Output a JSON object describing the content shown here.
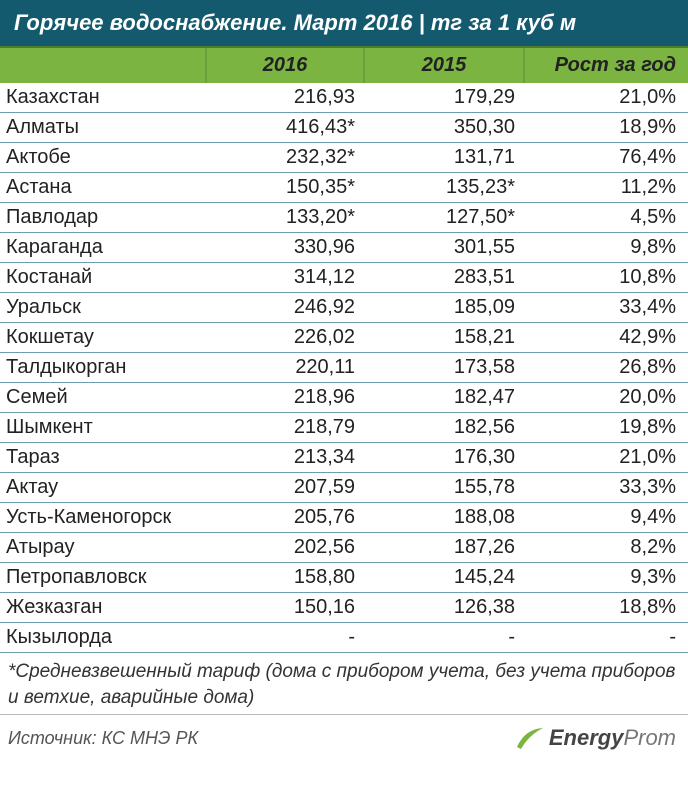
{
  "title": "Горячее водоснабжение. Март 2016 | тг за 1 куб м",
  "columns": {
    "c0": "",
    "c1": "2016",
    "c2": "2015",
    "c3": "Рост за год"
  },
  "rows": [
    {
      "name": "Казахстан",
      "y2016": "216,93",
      "y2015": "179,29",
      "growth": "21,0%"
    },
    {
      "name": "Алматы",
      "y2016": "416,43*",
      "y2015": "350,30",
      "growth": "18,9%"
    },
    {
      "name": "Актобе",
      "y2016": "232,32*",
      "y2015": "131,71",
      "growth": "76,4%"
    },
    {
      "name": "Астана",
      "y2016": "150,35*",
      "y2015": "135,23*",
      "growth": "11,2%"
    },
    {
      "name": "Павлодар",
      "y2016": "133,20*",
      "y2015": "127,50*",
      "growth": "4,5%"
    },
    {
      "name": "Караганда",
      "y2016": "330,96",
      "y2015": "301,55",
      "growth": "9,8%"
    },
    {
      "name": "Костанай",
      "y2016": "314,12",
      "y2015": "283,51",
      "growth": "10,8%"
    },
    {
      "name": "Уральск",
      "y2016": "246,92",
      "y2015": "185,09",
      "growth": "33,4%"
    },
    {
      "name": "Кокшетау",
      "y2016": "226,02",
      "y2015": "158,21",
      "growth": "42,9%"
    },
    {
      "name": "Талдыкорган",
      "y2016": "220,11",
      "y2015": "173,58",
      "growth": "26,8%"
    },
    {
      "name": "Семей",
      "y2016": "218,96",
      "y2015": "182,47",
      "growth": "20,0%"
    },
    {
      "name": "Шымкент",
      "y2016": "218,79",
      "y2015": "182,56",
      "growth": "19,8%"
    },
    {
      "name": "Тараз",
      "y2016": "213,34",
      "y2015": "176,30",
      "growth": "21,0%"
    },
    {
      "name": "Актау",
      "y2016": "207,59",
      "y2015": "155,78",
      "growth": "33,3%"
    },
    {
      "name": "Усть-Каменогорск",
      "y2016": "205,76",
      "y2015": "188,08",
      "growth": "9,4%"
    },
    {
      "name": "Атырау",
      "y2016": "202,56",
      "y2015": "187,26",
      "growth": "8,2%"
    },
    {
      "name": "Петропавловск",
      "y2016": "158,80",
      "y2015": "145,24",
      "growth": "9,3%"
    },
    {
      "name": "Жезказган",
      "y2016": "150,16",
      "y2015": "126,38",
      "growth": "18,8%"
    },
    {
      "name": "Кызылорда",
      "y2016": "-",
      "y2015": "-",
      "growth": "-"
    }
  ],
  "footnote": "*Средневзвешенный тариф (дома с прибором учета, без учета приборов и ветхие, аварийные дома)",
  "source": "Источник: КС МНЭ РК",
  "logo": {
    "part1": "Energy",
    "part2": "Prom",
    "swoosh_color": "#7bb441"
  },
  "colors": {
    "title_bg": "#145a6e",
    "header_bg": "#7bb441",
    "row_border": "#6d9eb0"
  }
}
